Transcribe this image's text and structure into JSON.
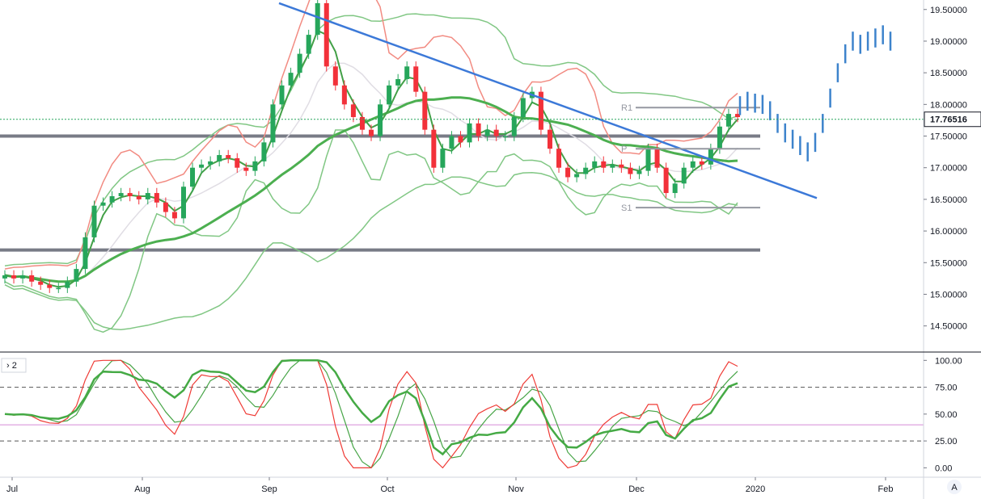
{
  "chart_data": [
    {
      "type": "candlestick",
      "pane": "price",
      "ylim": [
        14.1,
        19.65
      ],
      "y_ticks": [
        "19.50000",
        "19.00000",
        "18.50000",
        "18.00000",
        "17.50000",
        "17.00000",
        "16.50000",
        "16.00000",
        "15.50000",
        "15.00000",
        "14.50000"
      ],
      "y_tick_values": [
        19.5,
        19.0,
        18.5,
        18.0,
        17.5,
        17.0,
        16.5,
        16.0,
        15.5,
        15.0,
        14.5
      ],
      "last_price_label": "17.76516",
      "last_price": 17.765,
      "horizontal_levels": [
        17.5,
        15.7
      ],
      "pivots": [
        {
          "label": "R1",
          "value": 17.95
        },
        {
          "label": "P",
          "value": 17.3
        },
        {
          "label": "S1",
          "value": 16.37
        }
      ],
      "trendline": {
        "from": [
          "Sep",
          19.6
        ],
        "to": [
          "Jan",
          16.52
        ]
      },
      "candles_close": [
        15.3,
        15.25,
        15.3,
        15.2,
        15.15,
        15.1,
        15.1,
        15.2,
        15.4,
        15.9,
        16.4,
        16.45,
        16.55,
        16.6,
        16.55,
        16.5,
        16.6,
        16.45,
        16.3,
        16.2,
        16.7,
        17.0,
        17.05,
        17.1,
        17.2,
        17.15,
        17.0,
        16.95,
        17.1,
        17.4,
        18.0,
        18.3,
        18.5,
        18.8,
        19.1,
        19.6,
        18.6,
        18.3,
        18.0,
        17.8,
        17.6,
        17.5,
        18.0,
        18.3,
        18.4,
        18.6,
        18.2,
        17.6,
        17.0,
        17.3,
        17.5,
        17.4,
        17.7,
        17.5,
        17.6,
        17.5,
        17.5,
        17.8,
        18.1,
        18.2,
        17.6,
        17.3,
        17.0,
        16.85,
        16.9,
        17.0,
        17.1,
        17.0,
        17.05,
        17.0,
        16.9,
        16.95,
        17.3,
        17.0,
        16.6,
        16.75,
        17.0,
        17.1,
        17.05,
        17.3,
        17.65,
        17.85,
        17.8
      ],
      "forecast_bars": [
        17.98,
        18.05,
        18.02,
        18.0,
        17.9,
        17.7,
        17.55,
        17.45,
        17.35,
        17.25,
        17.4,
        17.7,
        18.1,
        18.5,
        18.8,
        19.0,
        18.95,
        19.0,
        19.05,
        19.1,
        19.0
      ],
      "series": [
        {
          "name": "",
          "color": "#e8514f"
        },
        {
          "name": "",
          "color": "#4caf50"
        }
      ]
    },
    {
      "type": "line",
      "pane": "oscillator",
      "pane_label": "2",
      "ylim": [
        -8,
        107
      ],
      "y_ticks": [
        "100.00",
        "75.00",
        "50.00",
        "25.00",
        "0.00"
      ],
      "y_tick_values": [
        100,
        75,
        50,
        25,
        0
      ],
      "reference_lines": [
        75,
        40,
        25
      ],
      "series_colors": [
        "#ef3b36",
        "#48a548",
        "#45aa45"
      ]
    }
  ],
  "x_axis": {
    "labels": [
      "Jul",
      "Aug",
      "Sep",
      "Oct",
      "Nov",
      "Dec",
      "2020",
      "Feb"
    ]
  },
  "colors": {
    "bull": "#26a65b",
    "bear": "#f2313a",
    "trendline": "#3c79d8",
    "level": "#787b86",
    "bb_upper": "#f28b82",
    "bb_lower": "#81c784",
    "ma_slow": "#4caf50",
    "price_tag_bg": "#ffffff",
    "forecast": "#3d83cc"
  },
  "footer": {
    "scale_button": "A"
  }
}
